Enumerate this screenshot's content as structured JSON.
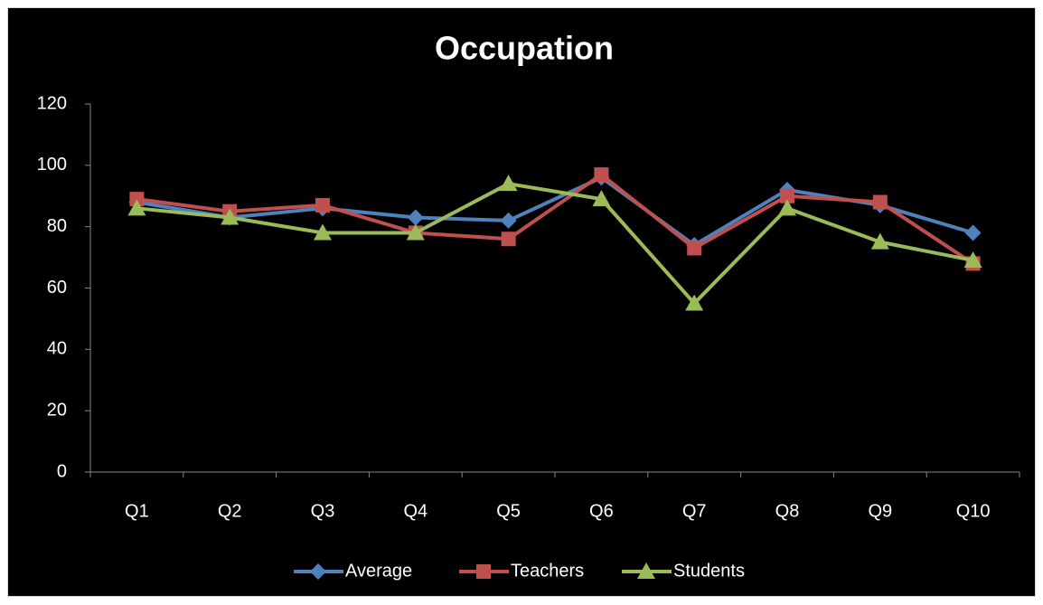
{
  "chart_data": {
    "type": "line",
    "title": "Occupation",
    "categories": [
      "Q1",
      "Q2",
      "Q3",
      "Q4",
      "Q5",
      "Q6",
      "Q7",
      "Q8",
      "Q9",
      "Q10"
    ],
    "series": [
      {
        "name": "Average",
        "color": "#4f81bd",
        "marker": "diamond",
        "values": [
          88,
          83,
          86,
          83,
          82,
          96,
          74,
          92,
          87,
          78
        ]
      },
      {
        "name": "Teachers",
        "color": "#c0504d",
        "marker": "square",
        "values": [
          89,
          85,
          87,
          78,
          76,
          97,
          73,
          90,
          88,
          68
        ]
      },
      {
        "name": "Students",
        "color": "#9bbb59",
        "marker": "triangle",
        "values": [
          86,
          83,
          78,
          78,
          94,
          89,
          55,
          86,
          75,
          69
        ]
      }
    ],
    "ylim": [
      0,
      120
    ],
    "yticks": [
      0,
      20,
      40,
      60,
      80,
      100,
      120
    ],
    "grid": false,
    "legend": "bottom"
  }
}
